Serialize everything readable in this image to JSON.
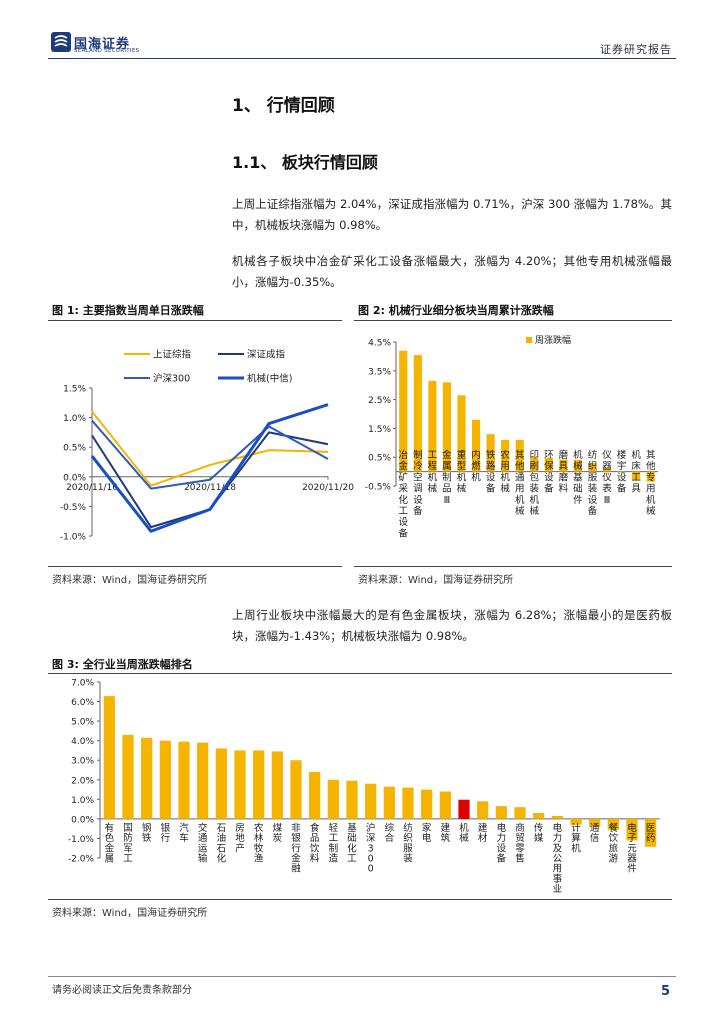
{
  "header": {
    "logo_cn": "国海证券",
    "logo_en": "SEALAND SECURITIES",
    "report_type": "证券研究报告"
  },
  "section": {
    "h1": "1、 行情回顾",
    "h2": "1.1、 板块行情回顾"
  },
  "paragraphs": {
    "p1": "上周上证综指涨幅为 2.04%，深证成指涨幅为 0.71%，沪深 300 涨幅为 1.78%。其中，机械板块涨幅为 0.98%。",
    "p2": "机械各子板块中冶金矿采化工设备涨幅最大，涨幅为 4.20%；其他专用机械涨幅最小，涨幅为-0.35%。",
    "p3": "上周行业板块中涨幅最大的是有色金属板块，涨幅为 6.28%；涨幅最小的是医药板块，涨幅为-1.43%；机械板块涨幅为 0.98%。"
  },
  "figures": {
    "fig1_title": "图 1:  主要指数当周单日涨跌幅",
    "fig2_title": "图 2:  机械行业细分板块当周累计涨跌幅",
    "fig3_title": "图 3:  全行业当周涨跌幅排名",
    "source": "资料来源：Wind，国海证券研究所"
  },
  "footer": {
    "note": "请务必阅读正文后免责条款部分",
    "page": "5"
  },
  "chart_data": [
    {
      "type": "line",
      "x": [
        "2020/11/16",
        "2020/11/17",
        "2020/11/18",
        "2020/11/19",
        "2020/11/20"
      ],
      "x_tick_labels": [
        "2020/11/16",
        "2020/11/18",
        "2020/11/20"
      ],
      "y_ticks": [
        "1.5%",
        "1.0%",
        "0.5%",
        "0.0%",
        "-0.5%",
        "-1.0%"
      ],
      "ylim": [
        -1.0,
        1.5
      ],
      "legend_position": "top",
      "series": [
        {
          "name": "上证综指",
          "color": "#f5b400",
          "width": 2,
          "values": [
            1.1,
            -0.15,
            0.2,
            0.45,
            0.42
          ]
        },
        {
          "name": "深证成指",
          "color": "#1f3a7a",
          "width": 2,
          "values": [
            0.7,
            -0.85,
            -0.55,
            0.75,
            0.55
          ]
        },
        {
          "name": "沪深300",
          "color": "#2e5cb8",
          "width": 2,
          "values": [
            0.95,
            -0.2,
            -0.05,
            0.85,
            0.3
          ]
        },
        {
          "name": "机械(中信)",
          "color": "#1a4fc4",
          "width": 3,
          "values": [
            0.35,
            -0.92,
            -0.55,
            0.9,
            1.22
          ]
        }
      ]
    },
    {
      "type": "bar",
      "legend": "周涨跌幅",
      "legend_position": "top-right",
      "color": "#f5b400",
      "ylim": [
        -0.5,
        4.5
      ],
      "y_ticks": [
        "4.5%",
        "3.5%",
        "2.5%",
        "1.5%",
        "0.5%",
        "-0.5%"
      ],
      "categories": [
        "冶金矿采化工设备",
        "制冷空调设备",
        "工程机械",
        "金属制品Ⅲ",
        "重型机械",
        "内燃机",
        "铁路设备",
        "农用机械",
        "其他通用机械",
        "印刷包装机械",
        "环保设备",
        "磨具磨料",
        "机械基础件",
        "纺织服装设备",
        "仪器仪表Ⅲ",
        "楼宇设备",
        "机床工具",
        "其他专用机械"
      ],
      "values": [
        4.2,
        4.05,
        3.15,
        3.1,
        2.65,
        1.8,
        1.3,
        1.1,
        1.1,
        0.5,
        0.48,
        0.42,
        0.4,
        0.3,
        0.12,
        0.0,
        -0.3,
        -0.35
      ]
    },
    {
      "type": "bar",
      "color": "#f5b400",
      "highlight_color": "#e00000",
      "highlight_category": "机械",
      "ylim": [
        -2.0,
        7.0
      ],
      "y_ticks": [
        "7.0%",
        "6.0%",
        "5.0%",
        "4.0%",
        "3.0%",
        "2.0%",
        "1.0%",
        "0.0%",
        "-1.0%",
        "-2.0%"
      ],
      "categories": [
        "有色金属",
        "国防军工",
        "钢铁",
        "银行",
        "汽车",
        "交通运输",
        "石油石化",
        "房地产",
        "农林牧渔",
        "煤炭",
        "非银行金融",
        "食品饮料",
        "轻工制造",
        "基础化工",
        "沪深300",
        "综合",
        "纺织服装",
        "家电",
        "建筑",
        "机械",
        "建材",
        "电力设备",
        "商贸零售",
        "传媒",
        "电力及公用事业",
        "计算机",
        "通信",
        "餐饮旅游",
        "电子元器件",
        "医药"
      ],
      "values": [
        6.28,
        4.3,
        4.15,
        4.0,
        3.95,
        3.9,
        3.6,
        3.5,
        3.5,
        3.45,
        3.0,
        2.4,
        2.0,
        1.95,
        1.8,
        1.65,
        1.6,
        1.5,
        1.4,
        0.98,
        0.9,
        0.65,
        0.6,
        0.3,
        0.15,
        -0.3,
        -0.4,
        -0.55,
        -1.1,
        -1.43
      ]
    }
  ]
}
